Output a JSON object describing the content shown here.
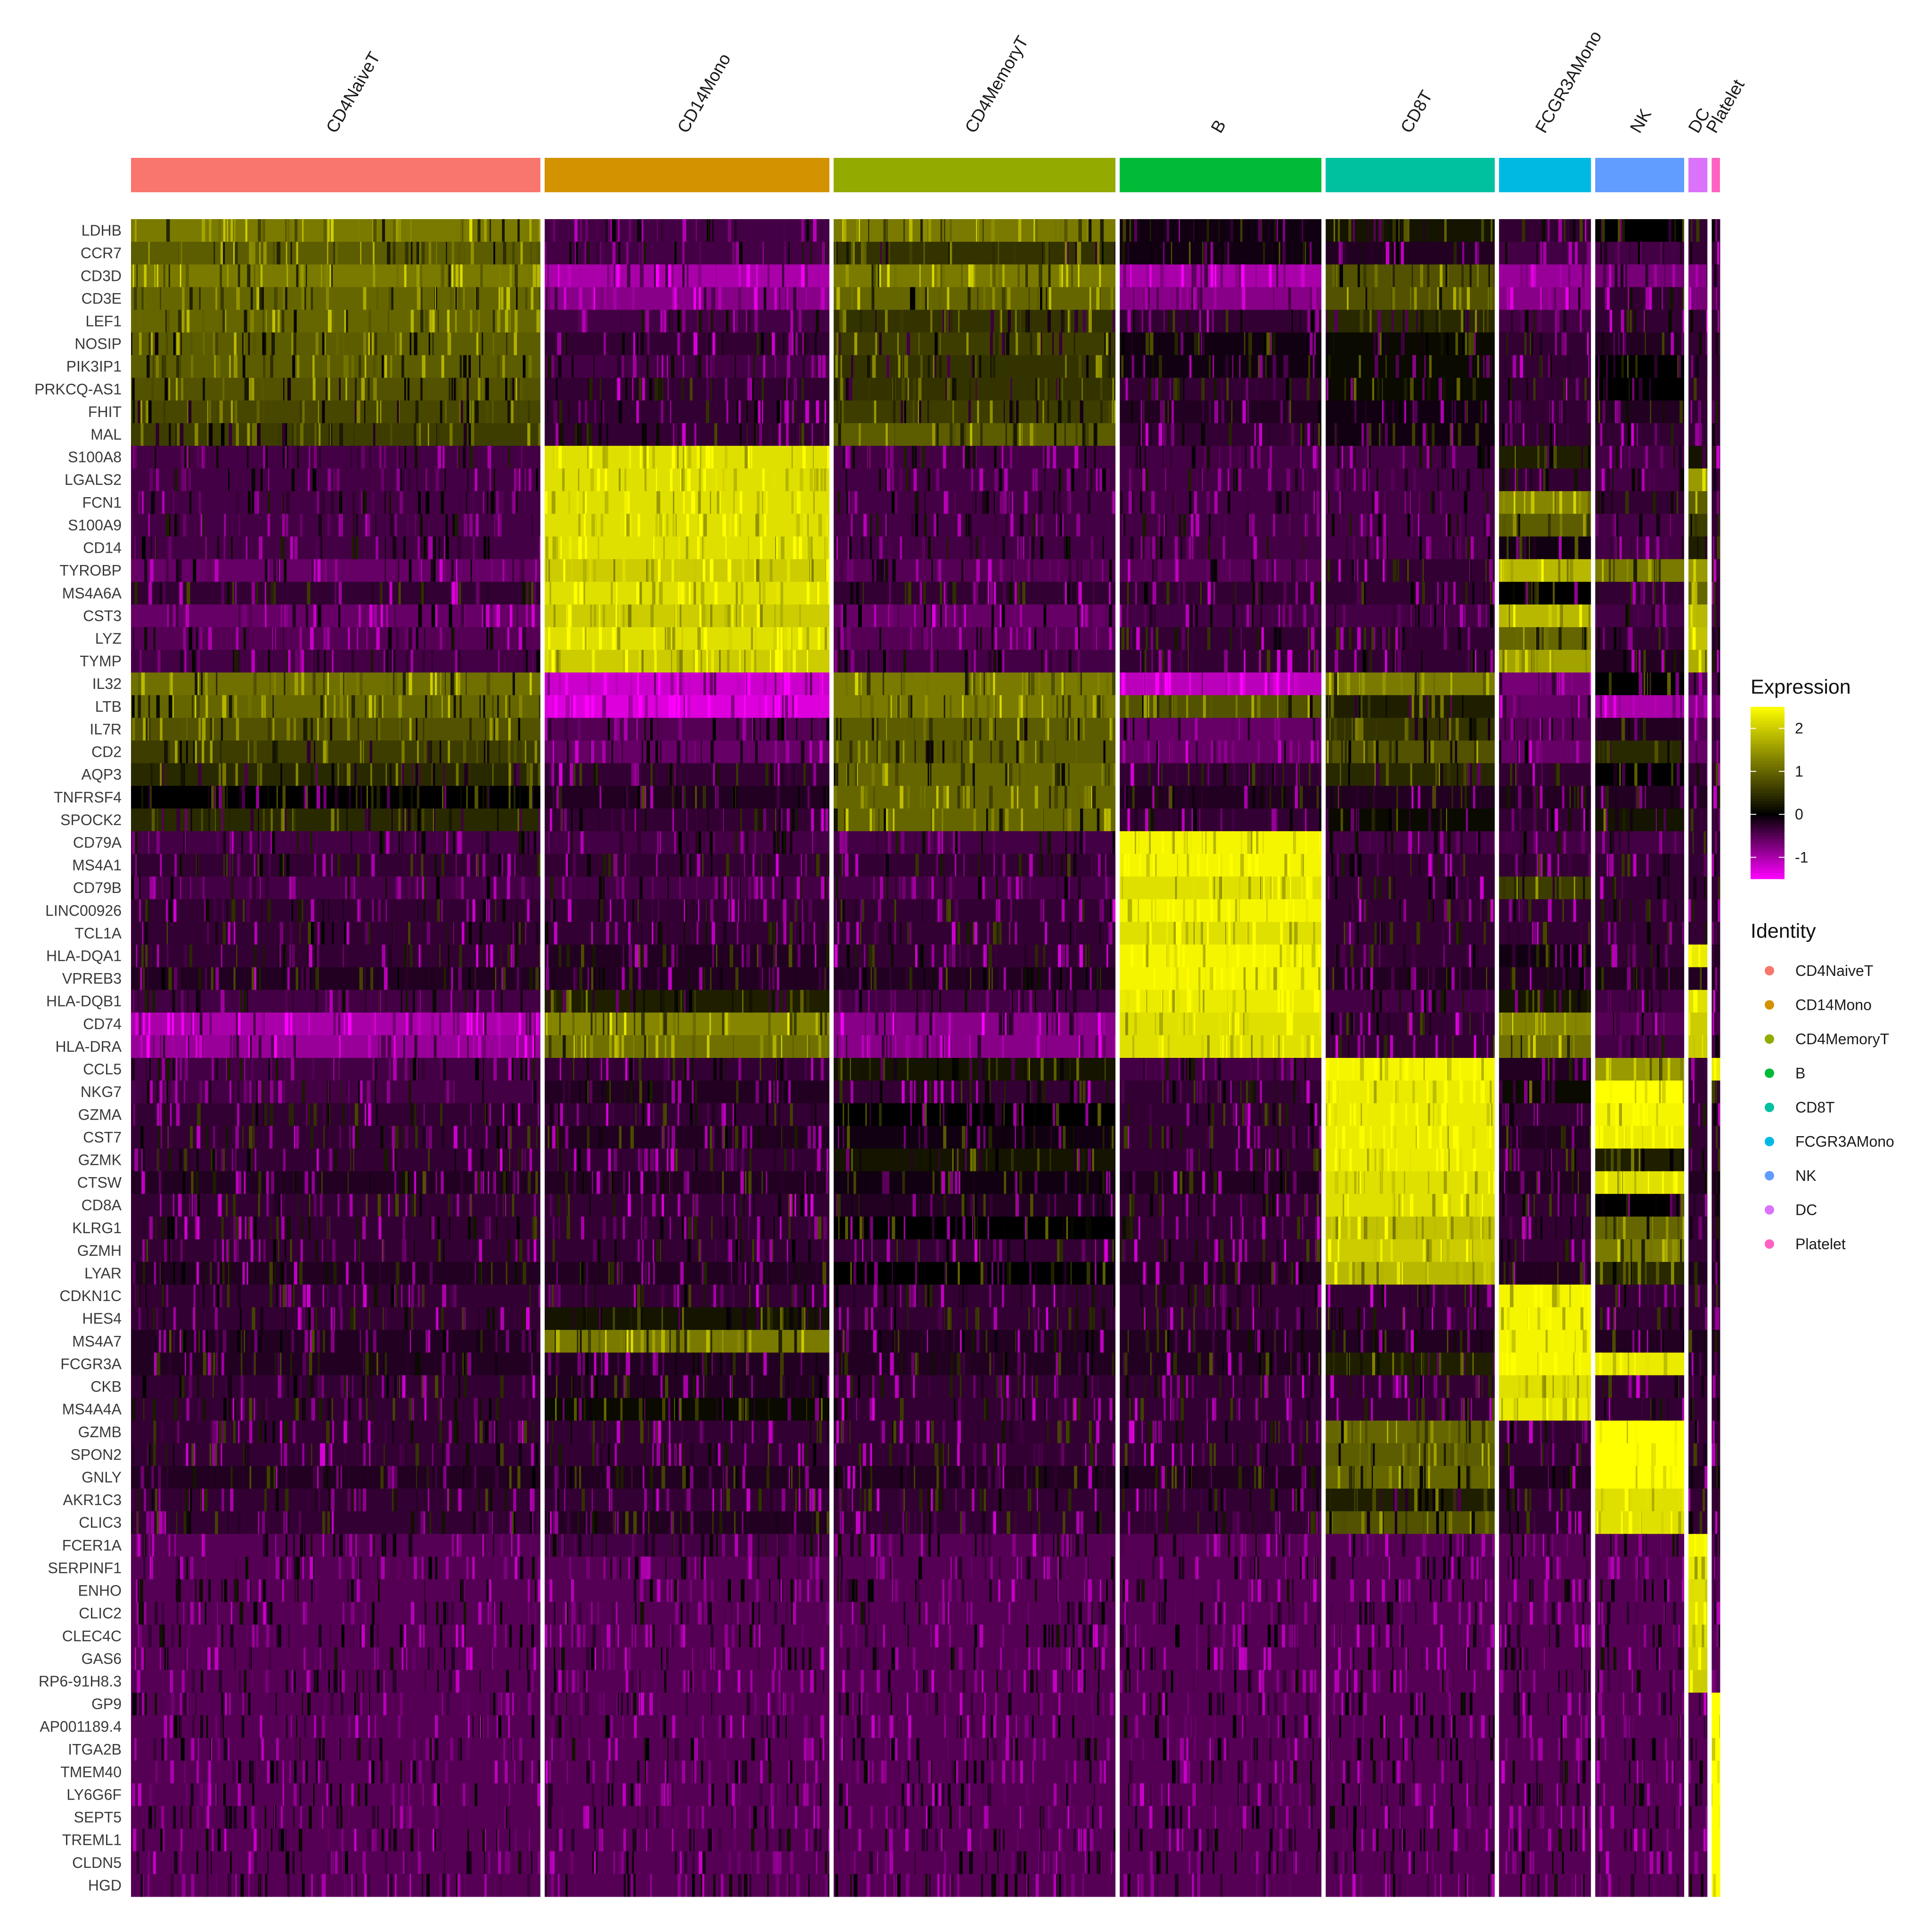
{
  "chart_data": {
    "type": "heatmap",
    "clusters": [
      {
        "name": "CD4NaiveT",
        "color": "#F8766D",
        "cells": 690
      },
      {
        "name": "CD14Mono",
        "color": "#D39200",
        "cells": 480
      },
      {
        "name": "CD4MemoryT",
        "color": "#93AA00",
        "cells": 475
      },
      {
        "name": "B",
        "color": "#00BA38",
        "cells": 340
      },
      {
        "name": "CD8T",
        "color": "#00C19F",
        "cells": 285
      },
      {
        "name": "FCGR3AMono",
        "color": "#00B9E3",
        "cells": 155
      },
      {
        "name": "NK",
        "color": "#619CFF",
        "cells": 150
      },
      {
        "name": "DC",
        "color": "#DB72FB",
        "cells": 32
      },
      {
        "name": "Platelet",
        "color": "#FF61C3",
        "cells": 14
      }
    ],
    "genes": [
      "LDHB",
      "CCR7",
      "CD3D",
      "CD3E",
      "LEF1",
      "NOSIP",
      "PIK3IP1",
      "PRKCQ-AS1",
      "FHIT",
      "MAL",
      "S100A8",
      "LGALS2",
      "FCN1",
      "S100A9",
      "CD14",
      "TYROBP",
      "MS4A6A",
      "CST3",
      "LYZ",
      "TYMP",
      "IL32",
      "LTB",
      "IL7R",
      "CD2",
      "AQP3",
      "TNFRSF4",
      "SPOCK2",
      "CD79A",
      "MS4A1",
      "CD79B",
      "LINC00926",
      "TCL1A",
      "HLA-DQA1",
      "VPREB3",
      "HLA-DQB1",
      "CD74",
      "HLA-DRA",
      "CCL5",
      "NKG7",
      "GZMA",
      "CST7",
      "GZMK",
      "CTSW",
      "CD8A",
      "KLRG1",
      "GZMH",
      "LYAR",
      "CDKN1C",
      "HES4",
      "MS4A7",
      "FCGR3A",
      "CKB",
      "MS4A4A",
      "GZMB",
      "SPON2",
      "GNLY",
      "AKR1C3",
      "CLIC3",
      "FCER1A",
      "SERPINF1",
      "ENHO",
      "CLIC2",
      "CLEC4C",
      "GAS6",
      "RP6-91H8.3",
      "GP9",
      "AP001189.4",
      "ITGA2B",
      "TMEM40",
      "LY6G6F",
      "SEPT5",
      "TREML1",
      "CLDN5",
      "HGD"
    ],
    "mean_expression_by_cluster": [
      [
        1.2,
        -0.4,
        1.2,
        -0.1,
        0.2,
        -0.3,
        0.0,
        -0.3,
        -0.3
      ],
      [
        0.9,
        -0.4,
        0.5,
        -0.1,
        -0.2,
        -0.4,
        -0.4,
        -0.3,
        -0.3
      ],
      [
        1.2,
        -1.0,
        1.2,
        -1.0,
        0.8,
        -0.9,
        -0.7,
        -0.8,
        -0.5
      ],
      [
        1.0,
        -0.8,
        1.0,
        -0.8,
        0.8,
        -0.8,
        -0.3,
        -0.7,
        -0.5
      ],
      [
        1.0,
        -0.4,
        0.5,
        -0.3,
        0.4,
        -0.4,
        -0.3,
        -0.3,
        -0.3
      ],
      [
        0.9,
        -0.3,
        0.6,
        -0.1,
        0.1,
        -0.3,
        -0.2,
        -0.3,
        -0.3
      ],
      [
        0.9,
        -0.4,
        0.5,
        -0.1,
        0.1,
        -0.3,
        0.0,
        -0.3,
        -0.3
      ],
      [
        0.8,
        -0.3,
        0.5,
        -0.3,
        0.1,
        -0.3,
        0.0,
        -0.3,
        -0.3
      ],
      [
        0.7,
        -0.3,
        0.6,
        -0.2,
        -0.1,
        -0.3,
        -0.2,
        -0.3,
        -0.3
      ],
      [
        0.6,
        -0.3,
        0.9,
        -0.3,
        -0.1,
        -0.3,
        -0.3,
        -0.3,
        -0.3
      ],
      [
        -0.4,
        2.2,
        -0.4,
        -0.4,
        -0.4,
        0.3,
        -0.4,
        0.2,
        -0.3
      ],
      [
        -0.4,
        2.2,
        -0.4,
        -0.4,
        -0.4,
        -0.3,
        -0.4,
        1.5,
        -0.3
      ],
      [
        -0.4,
        2.2,
        -0.4,
        -0.4,
        -0.4,
        1.3,
        -0.3,
        0.9,
        -0.3
      ],
      [
        -0.4,
        2.2,
        -0.4,
        -0.4,
        -0.4,
        0.9,
        -0.4,
        0.6,
        -0.3
      ],
      [
        -0.4,
        2.2,
        -0.4,
        -0.4,
        -0.4,
        -0.1,
        -0.4,
        0.3,
        -0.3
      ],
      [
        -0.6,
        2.0,
        -0.5,
        -0.5,
        -0.3,
        1.8,
        1.2,
        1.5,
        -0.3
      ],
      [
        -0.3,
        2.2,
        -0.3,
        -0.3,
        -0.3,
        0.0,
        -0.3,
        1.0,
        -0.3
      ],
      [
        -0.6,
        2.0,
        -0.6,
        -0.4,
        -0.4,
        1.8,
        -0.4,
        1.8,
        -0.3
      ],
      [
        -0.5,
        2.2,
        -0.5,
        -0.3,
        -0.3,
        1.0,
        -0.3,
        1.9,
        -0.3
      ],
      [
        -0.4,
        2.0,
        -0.4,
        -0.3,
        -0.3,
        1.6,
        -0.2,
        1.7,
        -0.3
      ],
      [
        1.1,
        -1.2,
        1.2,
        -1.1,
        1.2,
        -0.7,
        0.0,
        -0.5,
        -0.4
      ],
      [
        1.0,
        -1.3,
        1.2,
        0.8,
        0.3,
        -0.6,
        -1.0,
        -0.8,
        -0.6
      ],
      [
        0.8,
        -0.5,
        0.9,
        -0.6,
        0.5,
        -0.5,
        -0.2,
        -0.5,
        -0.4
      ],
      [
        0.6,
        -0.6,
        0.9,
        -0.6,
        0.8,
        -0.6,
        0.4,
        -0.6,
        -0.4
      ],
      [
        0.4,
        -0.3,
        1.0,
        -0.3,
        0.4,
        -0.3,
        0.0,
        -0.3,
        -0.3
      ],
      [
        0.0,
        -0.2,
        1.0,
        -0.2,
        -0.2,
        -0.2,
        -0.2,
        -0.2,
        -0.2
      ],
      [
        0.4,
        -0.3,
        1.0,
        -0.3,
        0.1,
        -0.3,
        0.2,
        -0.3,
        -0.3
      ],
      [
        -0.4,
        -0.4,
        -0.4,
        2.4,
        -0.4,
        -0.4,
        -0.4,
        -0.3,
        -0.3
      ],
      [
        -0.3,
        -0.3,
        -0.3,
        2.4,
        -0.3,
        -0.3,
        -0.3,
        -0.3,
        -0.3
      ],
      [
        -0.4,
        -0.4,
        -0.4,
        2.2,
        -0.3,
        0.6,
        -0.3,
        -0.3,
        -0.3
      ],
      [
        -0.3,
        -0.3,
        -0.3,
        2.4,
        -0.3,
        -0.3,
        -0.3,
        -0.3,
        -0.3
      ],
      [
        -0.3,
        -0.3,
        -0.3,
        2.2,
        -0.3,
        -0.3,
        -0.3,
        -0.3,
        -0.3
      ],
      [
        -0.3,
        -0.2,
        -0.3,
        2.4,
        -0.3,
        -0.1,
        -0.3,
        2.3,
        -0.3
      ],
      [
        -0.2,
        -0.2,
        -0.2,
        2.4,
        -0.2,
        -0.2,
        -0.2,
        -0.2,
        -0.2
      ],
      [
        -0.4,
        0.3,
        -0.4,
        2.3,
        -0.4,
        0.2,
        -0.4,
        2.2,
        -0.3
      ],
      [
        -1.0,
        1.3,
        -0.8,
        2.2,
        -0.3,
        1.3,
        -0.5,
        2.0,
        -0.4
      ],
      [
        -0.9,
        1.1,
        -0.8,
        2.2,
        -0.3,
        1.1,
        -0.4,
        2.0,
        -0.4
      ],
      [
        -0.4,
        -0.3,
        0.2,
        -0.4,
        2.4,
        -0.2,
        1.5,
        -0.3,
        2.3
      ],
      [
        -0.4,
        -0.2,
        -0.3,
        -0.3,
        2.3,
        0.1,
        2.5,
        -0.3,
        -0.3
      ],
      [
        -0.3,
        -0.3,
        0.0,
        -0.3,
        2.3,
        -0.3,
        2.4,
        -0.3,
        -0.3
      ],
      [
        -0.3,
        -0.2,
        -0.1,
        -0.3,
        2.3,
        -0.2,
        2.3,
        -0.3,
        -0.3
      ],
      [
        -0.3,
        -0.3,
        0.2,
        -0.3,
        2.3,
        -0.3,
        0.3,
        -0.3,
        -0.3
      ],
      [
        -0.2,
        -0.2,
        -0.1,
        -0.2,
        2.2,
        -0.2,
        2.2,
        -0.2,
        -0.2
      ],
      [
        -0.3,
        -0.3,
        -0.2,
        -0.3,
        2.2,
        -0.3,
        0.0,
        -0.3,
        -0.3
      ],
      [
        -0.3,
        -0.3,
        0.0,
        -0.3,
        1.9,
        -0.3,
        1.0,
        -0.3,
        -0.3
      ],
      [
        -0.3,
        -0.3,
        -0.3,
        -0.3,
        2.0,
        -0.3,
        1.2,
        -0.3,
        -0.3
      ],
      [
        -0.2,
        -0.2,
        0.0,
        -0.2,
        1.8,
        -0.2,
        0.4,
        -0.2,
        -0.2
      ],
      [
        -0.3,
        -0.3,
        -0.3,
        -0.3,
        -0.3,
        2.4,
        -0.3,
        -0.3,
        -0.3
      ],
      [
        -0.3,
        0.2,
        -0.3,
        -0.3,
        -0.3,
        2.4,
        -0.3,
        -0.3,
        -0.3
      ],
      [
        -0.2,
        1.2,
        -0.2,
        -0.2,
        -0.2,
        2.4,
        -0.2,
        -0.2,
        -0.2
      ],
      [
        -0.2,
        -0.2,
        -0.2,
        -0.2,
        0.3,
        2.4,
        2.3,
        -0.2,
        -0.2
      ],
      [
        -0.3,
        -0.2,
        -0.3,
        -0.3,
        -0.3,
        2.2,
        -0.3,
        -0.3,
        -0.3
      ],
      [
        -0.3,
        0.1,
        -0.3,
        -0.3,
        -0.3,
        2.3,
        -0.3,
        -0.3,
        -0.3
      ],
      [
        -0.3,
        -0.3,
        -0.3,
        -0.3,
        1.0,
        -0.3,
        2.6,
        -0.3,
        -0.3
      ],
      [
        -0.3,
        -0.3,
        -0.3,
        -0.3,
        0.9,
        -0.3,
        2.5,
        -0.3,
        -0.3
      ],
      [
        -0.2,
        -0.2,
        -0.2,
        -0.2,
        1.0,
        -0.2,
        2.6,
        -0.2,
        -0.2
      ],
      [
        -0.3,
        -0.3,
        -0.3,
        -0.3,
        0.3,
        -0.3,
        2.2,
        -0.3,
        -0.3
      ],
      [
        -0.3,
        -0.2,
        -0.3,
        -0.3,
        0.8,
        -0.3,
        2.2,
        -0.3,
        -0.3
      ],
      [
        -0.5,
        -0.4,
        -0.5,
        -0.5,
        -0.5,
        -0.5,
        -0.5,
        2.4,
        -0.5
      ],
      [
        -0.5,
        -0.5,
        -0.5,
        -0.5,
        -0.5,
        -0.5,
        -0.5,
        2.3,
        -0.5
      ],
      [
        -0.5,
        -0.5,
        -0.5,
        -0.5,
        -0.5,
        -0.5,
        -0.5,
        2.2,
        -0.5
      ],
      [
        -0.5,
        -0.5,
        -0.5,
        -0.5,
        -0.5,
        -0.5,
        -0.5,
        2.2,
        -0.5
      ],
      [
        -0.5,
        -0.5,
        -0.5,
        -0.5,
        -0.5,
        -0.5,
        -0.5,
        2.2,
        -0.5
      ],
      [
        -0.5,
        -0.5,
        -0.5,
        -0.5,
        -0.5,
        -0.5,
        -0.5,
        2.1,
        -0.5
      ],
      [
        -0.5,
        -0.5,
        -0.5,
        -0.5,
        -0.5,
        -0.5,
        -0.5,
        2.0,
        -0.5
      ],
      [
        -0.5,
        -0.5,
        -0.5,
        -0.5,
        -0.5,
        -0.5,
        -0.5,
        -0.5,
        2.5
      ],
      [
        -0.5,
        -0.5,
        -0.5,
        -0.5,
        -0.5,
        -0.5,
        -0.5,
        -0.5,
        2.5
      ],
      [
        -0.5,
        -0.5,
        -0.5,
        -0.5,
        -0.5,
        -0.5,
        -0.5,
        -0.5,
        2.5
      ],
      [
        -0.5,
        -0.5,
        -0.5,
        -0.5,
        -0.5,
        -0.5,
        -0.5,
        -0.5,
        2.5
      ],
      [
        -0.5,
        -0.5,
        -0.5,
        -0.5,
        -0.5,
        -0.5,
        -0.5,
        -0.5,
        2.5
      ],
      [
        -0.5,
        -0.5,
        -0.5,
        -0.5,
        -0.5,
        -0.5,
        -0.5,
        -0.5,
        2.5
      ],
      [
        -0.5,
        -0.5,
        -0.5,
        -0.5,
        -0.5,
        -0.5,
        -0.5,
        -0.5,
        2.5
      ],
      [
        -0.5,
        -0.5,
        -0.5,
        -0.5,
        -0.5,
        -0.5,
        -0.5,
        -0.5,
        2.5
      ],
      [
        -0.5,
        -0.5,
        -0.5,
        -0.5,
        -0.5,
        -0.5,
        -0.5,
        -0.5,
        2.5
      ]
    ],
    "color_scale": {
      "title": "Expression",
      "min": -1.5,
      "max": 2.5,
      "ticks": [
        2,
        1,
        0,
        -1
      ],
      "colors": [
        "#FF00FF",
        "#000000",
        "#FFFF00"
      ]
    },
    "identity_legend": {
      "title": "Identity"
    },
    "grid": false,
    "legend_position": "right"
  }
}
